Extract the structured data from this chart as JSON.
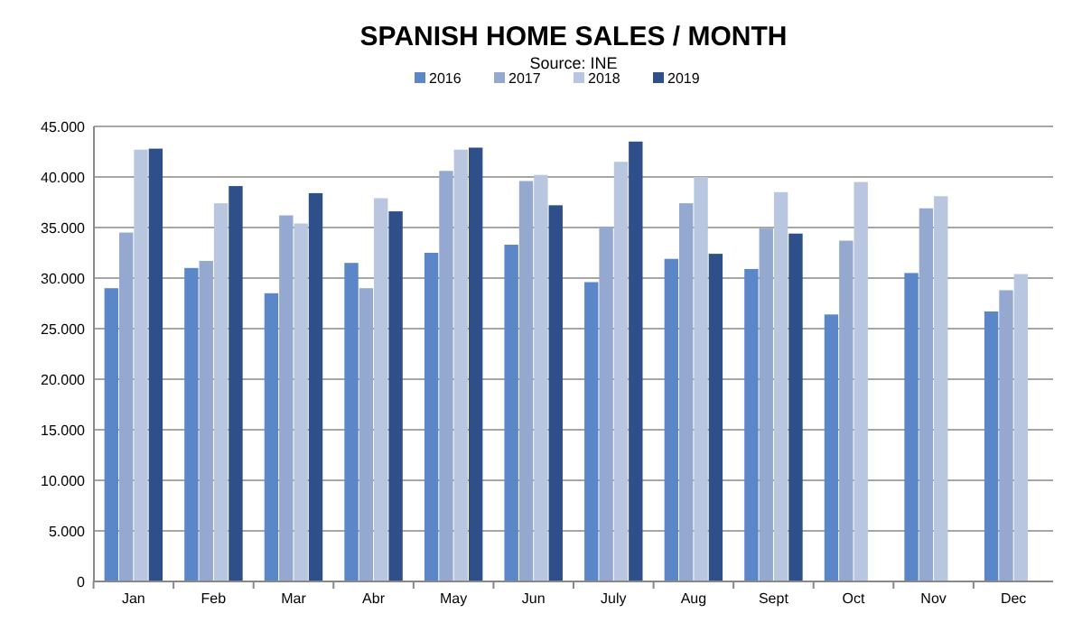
{
  "chart_data": {
    "type": "bar",
    "title": "SPANISH HOME SALES / MONTH",
    "subtitle": "Source:  INE",
    "categories": [
      "Jan",
      "Feb",
      "Mar",
      "Abr",
      "May",
      "Jun",
      "July",
      "Aug",
      "Sept",
      "Oct",
      "Nov",
      "Dec"
    ],
    "series": [
      {
        "name": "2016",
        "color": "#5b86c8",
        "values": [
          29000,
          31000,
          28500,
          31500,
          32500,
          33300,
          29600,
          31900,
          30900,
          26400,
          30500,
          26700
        ]
      },
      {
        "name": "2017",
        "color": "#95a9d0",
        "values": [
          34500,
          31700,
          36200,
          29000,
          40600,
          39600,
          35100,
          37400,
          34900,
          33700,
          36900,
          28800
        ]
      },
      {
        "name": "2018",
        "color": "#b9c6e0",
        "values": [
          42700,
          37400,
          35400,
          37900,
          42700,
          40200,
          41500,
          40000,
          38500,
          39500,
          38100,
          30400
        ]
      },
      {
        "name": "2019",
        "color": "#2e4f8a",
        "values": [
          42800,
          39100,
          38400,
          36600,
          42900,
          37200,
          43500,
          32400,
          34400,
          null,
          null,
          null
        ]
      }
    ],
    "ylim": [
      0,
      45000
    ],
    "yticks": [
      {
        "value": 0,
        "label": "0"
      },
      {
        "value": 5000,
        "label": "5.000"
      },
      {
        "value": 10000,
        "label": "10.000"
      },
      {
        "value": 15000,
        "label": "15.000"
      },
      {
        "value": 20000,
        "label": "20.000"
      },
      {
        "value": 25000,
        "label": "25.000"
      },
      {
        "value": 30000,
        "label": "30.000"
      },
      {
        "value": 35000,
        "label": "35.000"
      },
      {
        "value": 40000,
        "label": "40.000"
      },
      {
        "value": 45000,
        "label": "45.000"
      }
    ],
    "grid": "y",
    "legend": "top"
  }
}
